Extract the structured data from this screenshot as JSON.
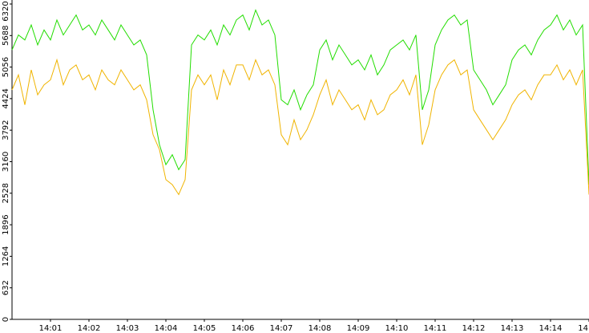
{
  "chart_data": {
    "type": "line",
    "categories": [
      null,
      null,
      null,
      null,
      null,
      null,
      "14:01",
      null,
      null,
      null,
      null,
      null,
      "14:02",
      null,
      null,
      null,
      null,
      null,
      "14:03",
      null,
      null,
      null,
      null,
      null,
      "14:04",
      null,
      null,
      null,
      null,
      null,
      "14:05",
      null,
      null,
      null,
      null,
      null,
      "14:06",
      null,
      null,
      null,
      null,
      null,
      "14:07",
      null,
      null,
      null,
      null,
      null,
      "14:08",
      null,
      null,
      null,
      null,
      null,
      "14:09",
      null,
      null,
      null,
      null,
      null,
      "14:10",
      null,
      null,
      null,
      null,
      null,
      "14:11",
      null,
      null,
      null,
      null,
      null,
      "14:12",
      null,
      null,
      null,
      null,
      null,
      "14:13",
      null,
      null,
      null,
      null,
      null,
      "14:14",
      null,
      null,
      null,
      null,
      null,
      "14"
    ],
    "series": [
      {
        "color": "#22dd00",
        "values": [
          5400,
          5700,
          5600,
          5900,
          5500,
          5800,
          5600,
          6000,
          5700,
          5900,
          6100,
          5800,
          5900,
          5700,
          6000,
          5800,
          5600,
          5900,
          5700,
          5500,
          5600,
          5300,
          4200,
          3500,
          3100,
          3300,
          3000,
          3200,
          5500,
          5700,
          5600,
          5800,
          5500,
          5900,
          5700,
          6000,
          6100,
          5800,
          6200,
          5900,
          6000,
          5700,
          4400,
          4300,
          4600,
          4200,
          4500,
          4700,
          5400,
          5600,
          5200,
          5500,
          5300,
          5100,
          5200,
          5000,
          5300,
          4900,
          5100,
          5400,
          5500,
          5600,
          5400,
          5700,
          4200,
          4600,
          5500,
          5800,
          6000,
          6100,
          5900,
          6000,
          5000,
          4800,
          4600,
          4300,
          4500,
          4700,
          5200,
          5400,
          5500,
          5300,
          5600,
          5800,
          5900,
          6100,
          5800,
          6000,
          5700,
          5900,
          2700
        ]
      },
      {
        "color": "#f0b400",
        "values": [
          4600,
          4900,
          4300,
          5000,
          4500,
          4700,
          4800,
          5200,
          4700,
          5000,
          5100,
          4800,
          4900,
          4600,
          5000,
          4800,
          4700,
          5000,
          4800,
          4600,
          4700,
          4400,
          3700,
          3400,
          2800,
          2700,
          2500,
          2800,
          4600,
          4900,
          4700,
          4900,
          4400,
          5000,
          4700,
          5100,
          5100,
          4800,
          5200,
          4900,
          5000,
          4700,
          3700,
          3500,
          4000,
          3600,
          3800,
          4100,
          4500,
          4800,
          4300,
          4600,
          4400,
          4200,
          4300,
          4000,
          4400,
          4100,
          4200,
          4500,
          4600,
          4800,
          4500,
          4900,
          3500,
          3900,
          4600,
          4900,
          5100,
          5200,
          4900,
          5000,
          4200,
          4000,
          3800,
          3600,
          3800,
          4000,
          4300,
          4500,
          4600,
          4400,
          4700,
          4900,
          4900,
          5100,
          4800,
          5000,
          4700,
          5000,
          2500
        ]
      }
    ],
    "ylim": [
      0,
      6320
    ],
    "yticks": [
      0,
      632,
      1264,
      1896,
      2528,
      3160,
      3792,
      4424,
      5056,
      5688,
      6320
    ],
    "grid": false
  }
}
